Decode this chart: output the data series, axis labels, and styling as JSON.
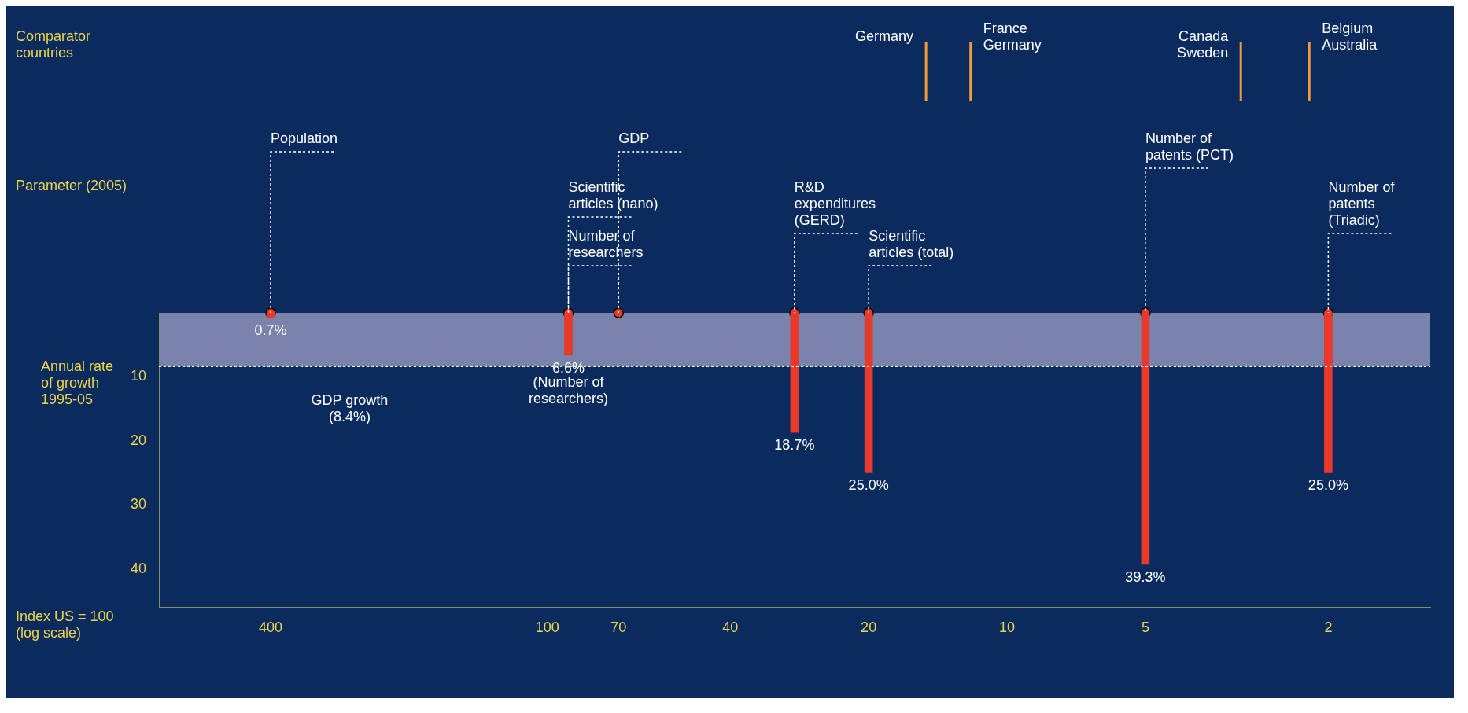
{
  "chart_data": {
    "type": "bar",
    "xlabel": "Index US = 100 (log scale)",
    "ylabel": "Annual rate of growth 1995-05",
    "log": "x",
    "xlim": [
      700,
      1.2
    ],
    "xticks": [
      400,
      100,
      70,
      40,
      20,
      10,
      5,
      2
    ],
    "ylim": [
      46,
      0
    ],
    "yticks": [
      10,
      20,
      30,
      40
    ],
    "marker": "circle",
    "series": [
      {
        "color": "#e8392b",
        "x": [
          400,
          90,
          29,
          20,
          5,
          2
        ],
        "values": [
          0.7,
          6.6,
          18.7,
          25.0,
          39.3,
          25.0
        ],
        "value_labels": [
          "0.7%",
          "6.6%",
          "18.7%",
          "25.0%",
          "39.3%",
          "25.0%"
        ]
      },
      {
        "type": "scatter",
        "color": "#e8392b",
        "x": [
          400,
          90,
          70,
          29,
          20,
          5,
          2
        ],
        "values": [
          0,
          0,
          0,
          0,
          0,
          0,
          0
        ]
      }
    ],
    "bands": [
      {
        "axis": "y",
        "from": 0,
        "to": 8.4,
        "color": "#7a83ab"
      }
    ],
    "ref_lines": [
      {
        "axis": "y",
        "value": 8.4,
        "label": "GDP growth (8.4%)",
        "line_style": "dotted",
        "color": "#ffffff"
      },
      {
        "axis": "x",
        "value": 15,
        "label": "Germany",
        "color": "#f59a3c"
      },
      {
        "axis": "x",
        "value": 12,
        "label": "France Germany",
        "color": "#f59a3c"
      },
      {
        "axis": "x",
        "value": 3.1,
        "label": "Canada Sweden",
        "color": "#f59a3c"
      },
      {
        "axis": "x",
        "value": 2.2,
        "label": "Belgium Australia",
        "color": "#f59a3c"
      }
    ],
    "annotations": [
      "Comparator countries",
      "Parameter (2005)",
      {
        "text": "Population",
        "x": 400,
        "y": 0
      },
      {
        "text": "Scientific articles (nano)",
        "x": 90,
        "y": 0
      },
      {
        "text": "Number of researchers",
        "x": 90,
        "y": 0
      },
      {
        "text": "GDP",
        "x": 70,
        "y": 0
      },
      {
        "text": "R&D expenditures (GERD)",
        "x": 29,
        "y": 0
      },
      {
        "text": "Scientific articles (total)",
        "x": 20,
        "y": 0
      },
      {
        "text": "Number of patents (PCT)",
        "x": 5,
        "y": 0
      },
      {
        "text": "Number of patents (Triadic)",
        "x": 2,
        "y": 0
      },
      {
        "text": "(Number of researchers)",
        "x": 90,
        "y": 6.6
      }
    ]
  }
}
